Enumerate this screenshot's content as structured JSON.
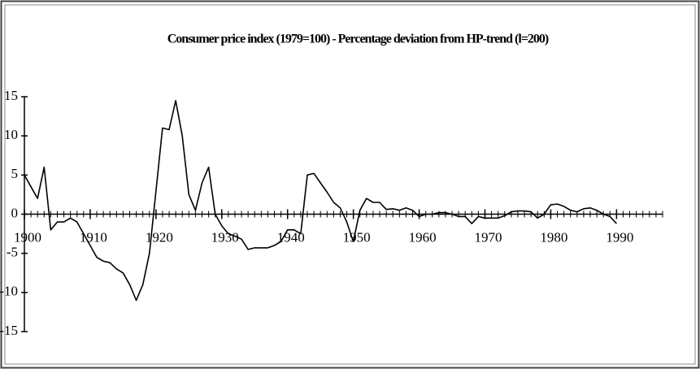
{
  "chart_data": {
    "type": "line",
    "title": "Consumer price index (1979=100) - Percentage deviation from HP-trend (l=200)",
    "x": [
      1900,
      1901,
      1902,
      1903,
      1904,
      1905,
      1906,
      1907,
      1908,
      1909,
      1910,
      1911,
      1912,
      1913,
      1914,
      1915,
      1916,
      1917,
      1918,
      1919,
      1920,
      1921,
      1922,
      1923,
      1924,
      1925,
      1926,
      1927,
      1928,
      1929,
      1930,
      1931,
      1932,
      1933,
      1934,
      1935,
      1936,
      1937,
      1938,
      1939,
      1940,
      1941,
      1942,
      1943,
      1944,
      1945,
      1946,
      1947,
      1948,
      1949,
      1950,
      1951,
      1952,
      1953,
      1954,
      1955,
      1956,
      1957,
      1958,
      1959,
      1960,
      1961,
      1962,
      1963,
      1964,
      1965,
      1966,
      1967,
      1968,
      1969,
      1970,
      1971,
      1972,
      1973,
      1974,
      1975,
      1976,
      1977,
      1978,
      1979,
      1980,
      1981,
      1982,
      1983,
      1984,
      1985,
      1986,
      1987,
      1988,
      1989,
      1990
    ],
    "values": [
      5,
      3.5,
      2,
      6,
      -2,
      -1,
      -1,
      -0.5,
      -1,
      -2.5,
      -4,
      -5.5,
      -6,
      -6.2,
      -7,
      -7.5,
      -9,
      -11,
      -9,
      -5,
      3,
      11,
      10.8,
      14.5,
      10,
      2.5,
      0.5,
      4,
      6,
      0,
      -1.5,
      -2.5,
      -2.8,
      -3.2,
      -4.5,
      -4.3,
      -4.3,
      -4.3,
      -4,
      -3.5,
      -2,
      -2,
      -2.5,
      5,
      5.2,
      4,
      2.8,
      1.5,
      0.8,
      -1,
      -3.5,
      0.5,
      2,
      1.5,
      1.5,
      0.6,
      0.7,
      0.5,
      0.8,
      0.5,
      -0.3,
      0,
      0,
      0.2,
      0.2,
      0,
      -0.3,
      -0.3,
      -1.2,
      -0.3,
      -0.5,
      -0.5,
      -0.5,
      -0.2,
      0.3,
      0.4,
      0.4,
      0.3,
      -0.5,
      0,
      1.2,
      1.3,
      1,
      0.5,
      0.3,
      0.7,
      0.8,
      0.5,
      0,
      -0.3,
      -1.2
    ],
    "color": "#000000",
    "xlim": [
      1900,
      1997
    ],
    "xticks": [
      1900,
      1910,
      1920,
      1930,
      1940,
      1950,
      1960,
      1970,
      1980,
      1990
    ],
    "ylim": [
      -15,
      15
    ],
    "yticks": [
      15,
      10,
      5,
      0,
      -5,
      -10,
      -15
    ],
    "grid": false
  }
}
